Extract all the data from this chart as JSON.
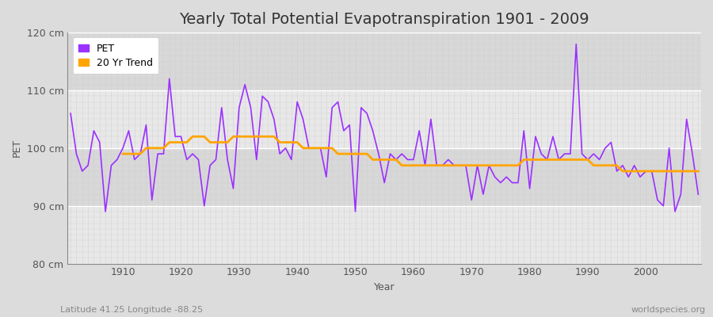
{
  "title": "Yearly Total Potential Evapotranspiration 1901 - 2009",
  "xlabel": "Year",
  "ylabel": "PET",
  "subtitle_left": "Latitude 41.25 Longitude -88.25",
  "subtitle_right": "worldspecies.org",
  "years": [
    1901,
    1902,
    1903,
    1904,
    1905,
    1906,
    1907,
    1908,
    1909,
    1910,
    1911,
    1912,
    1913,
    1914,
    1915,
    1916,
    1917,
    1918,
    1919,
    1920,
    1921,
    1922,
    1923,
    1924,
    1925,
    1926,
    1927,
    1928,
    1929,
    1930,
    1931,
    1932,
    1933,
    1934,
    1935,
    1936,
    1937,
    1938,
    1939,
    1940,
    1941,
    1942,
    1943,
    1944,
    1945,
    1946,
    1947,
    1948,
    1949,
    1950,
    1951,
    1952,
    1953,
    1954,
    1955,
    1956,
    1957,
    1958,
    1959,
    1960,
    1961,
    1962,
    1963,
    1964,
    1965,
    1966,
    1967,
    1968,
    1969,
    1970,
    1971,
    1972,
    1973,
    1974,
    1975,
    1976,
    1977,
    1978,
    1979,
    1980,
    1981,
    1982,
    1983,
    1984,
    1985,
    1986,
    1987,
    1988,
    1989,
    1990,
    1991,
    1992,
    1993,
    1994,
    1995,
    1996,
    1997,
    1998,
    1999,
    2000,
    2001,
    2002,
    2003,
    2004,
    2005,
    2006,
    2007,
    2008,
    2009
  ],
  "pet": [
    106,
    99,
    96,
    97,
    103,
    101,
    89,
    97,
    98,
    100,
    103,
    98,
    99,
    104,
    91,
    99,
    99,
    112,
    102,
    102,
    98,
    99,
    98,
    90,
    97,
    98,
    107,
    98,
    93,
    107,
    111,
    107,
    98,
    109,
    108,
    105,
    99,
    100,
    98,
    108,
    105,
    100,
    100,
    100,
    95,
    107,
    108,
    103,
    104,
    89,
    107,
    106,
    103,
    99,
    94,
    99,
    98,
    99,
    98,
    98,
    103,
    97,
    105,
    97,
    97,
    98,
    97,
    97,
    97,
    91,
    97,
    92,
    97,
    95,
    94,
    95,
    94,
    94,
    103,
    93,
    102,
    99,
    98,
    102,
    98,
    99,
    99,
    118,
    99,
    98,
    99,
    98,
    100,
    101,
    96,
    97,
    95,
    97,
    95,
    96,
    96,
    91,
    90,
    100,
    89,
    92,
    105,
    99,
    92
  ],
  "trend": [
    null,
    null,
    null,
    null,
    null,
    null,
    null,
    null,
    null,
    99,
    99,
    99,
    99,
    100,
    100,
    100,
    100,
    101,
    101,
    101,
    101,
    102,
    102,
    102,
    101,
    101,
    101,
    101,
    102,
    102,
    102,
    102,
    102,
    102,
    102,
    102,
    101,
    101,
    101,
    101,
    100,
    100,
    100,
    100,
    100,
    100,
    99,
    99,
    99,
    99,
    99,
    99,
    98,
    98,
    98,
    98,
    98,
    97,
    97,
    97,
    97,
    97,
    97,
    97,
    97,
    97,
    97,
    97,
    97,
    97,
    97,
    97,
    97,
    97,
    97,
    97,
    97,
    97,
    98,
    98,
    98,
    98,
    98,
    98,
    98,
    98,
    98,
    98,
    98,
    98,
    97,
    97,
    97,
    97,
    97,
    96,
    96,
    96,
    96,
    96,
    96,
    96,
    96,
    96,
    96,
    96,
    96,
    96,
    96
  ],
  "pet_color": "#9B30FF",
  "trend_color": "#FFA500",
  "bg_color": "#DCDCDC",
  "plot_bg_color_light": "#E8E8E8",
  "plot_bg_color_dark": "#D8D8D8",
  "grid_color_minor": "#C8C8C8",
  "grid_color_major": "#BBBBBB",
  "ylim": [
    80,
    120
  ],
  "yticks": [
    80,
    90,
    100,
    110,
    120
  ],
  "ytick_labels": [
    "80 cm",
    "90 cm",
    "100 cm",
    "110 cm",
    "120 cm"
  ],
  "xticks": [
    1910,
    1920,
    1930,
    1940,
    1950,
    1960,
    1970,
    1980,
    1990,
    2000
  ],
  "title_fontsize": 14,
  "label_fontsize": 9,
  "tick_fontsize": 9,
  "legend_fontsize": 9
}
